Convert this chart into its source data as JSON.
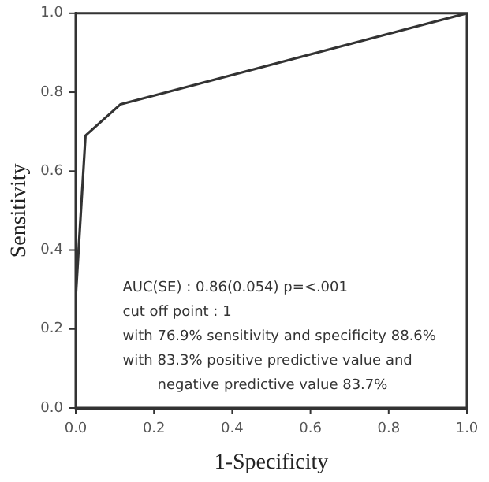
{
  "chart_data": {
    "type": "line",
    "xlabel": "1-Specificity",
    "ylabel": "Sensitivity",
    "x": [
      0,
      0,
      0.025,
      0.114,
      1
    ],
    "series": [
      {
        "color": "#333333",
        "values": [
          0,
          0.28,
          0.69,
          0.769,
          1
        ]
      }
    ],
    "xlim": [
      0,
      1
    ],
    "ylim": [
      0,
      1
    ],
    "xticks": [
      {
        "value": 0,
        "label": "0.0"
      },
      0.2,
      0.4,
      0.6,
      0.8,
      {
        "value": 1,
        "label": "1.0"
      }
    ],
    "yticks": [
      {
        "value": 0,
        "label": "0.0"
      },
      0.2,
      0.4,
      0.6,
      0.8,
      {
        "value": 1,
        "label": "1.0"
      }
    ],
    "grid": false,
    "legend": false,
    "marker": "none",
    "line_style": "solid",
    "annotations": [
      "AUC(SE) : 0.86(0.054) p=<.001",
      "cut off point : 1",
      "with 76.9% sensitivity and specificity 88.6%",
      "with 83.3% positive predictive value and",
      "negative predictive value 83.7%"
    ]
  }
}
